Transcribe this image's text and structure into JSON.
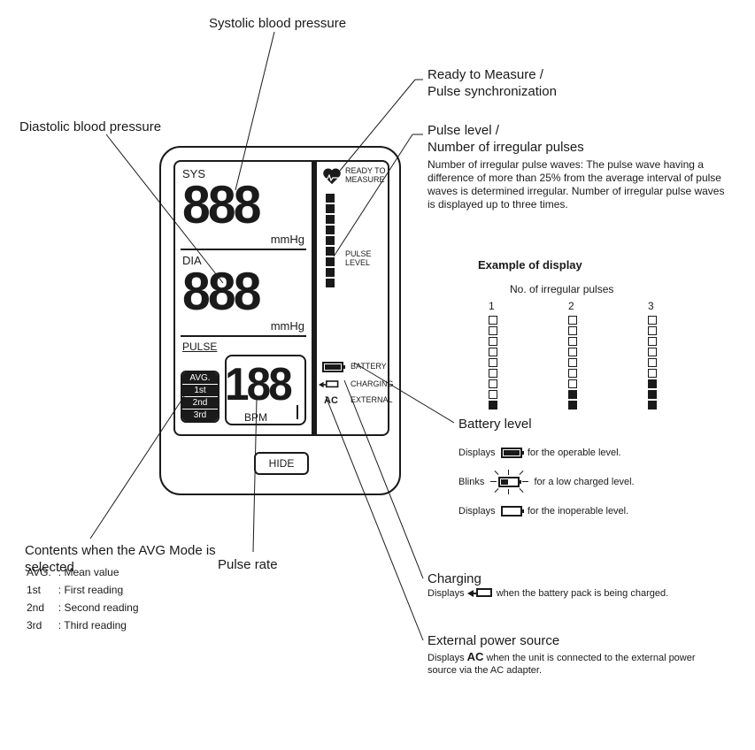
{
  "callouts": {
    "systolic": "Systolic blood pressure",
    "diastolic": "Diastolic blood pressure",
    "ready": "Ready to Measure /\nPulse synchronization",
    "pulse_level_title": "Pulse level /\nNumber of irregular pulses",
    "pulse_level_body": "Number of irregular pulse waves:  The pulse wave having a difference of more than 25% from the average interval of pulse waves is determined irregular.  Number of irregular pulse waves is displayed up to three times.",
    "example_title": "Example of display",
    "example_sub": "No. of irregular pulses",
    "example_cols": [
      "1",
      "2",
      "3"
    ],
    "battery_level": "Battery level",
    "batt_full": "for the operable level.",
    "batt_blink": "for a low charged level.",
    "batt_empty": "for the inoperable level.",
    "batt_displays": "Displays",
    "batt_blinks": "Blinks",
    "charging_title": "Charging",
    "charging_body": "when the battery pack is being charged.",
    "external_title": "External power source",
    "external_body": "when the unit is connected to the external power source via the AC adapter.",
    "avg_title": "Contents when the AVG Mode is selected",
    "pulse_rate": "Pulse rate",
    "ac": "AC"
  },
  "screen": {
    "sys_label": "SYS",
    "dia_label": "DIA",
    "pulse_label": "PULSE",
    "digits": "888",
    "pulse_digits": "188",
    "mmhg": "mmHg",
    "bpm": "BPM",
    "ready": "READY TO MEASURE",
    "pulse_level": "PULSE LEVEL",
    "battery": "BATTERY",
    "charging": "CHARGING",
    "external": "EXTERNAL",
    "ac": "AC",
    "hide": "HIDE",
    "avg": [
      "AVG.",
      "1st",
      "2nd",
      "3rd"
    ]
  },
  "avg_legend": [
    [
      "AVG.",
      ": Mean value"
    ],
    [
      "1st",
      ": First reading"
    ],
    [
      "2nd",
      ": Second reading"
    ],
    [
      "3rd",
      ": Third reading"
    ]
  ],
  "example_bars": {
    "total_segments": 9,
    "columns": [
      {
        "filled_bottom": 1
      },
      {
        "filled_bottom": 2
      },
      {
        "filled_bottom": 3
      }
    ]
  },
  "colors": {
    "fg": "#1a1a1a",
    "bg": "#ffffff"
  }
}
